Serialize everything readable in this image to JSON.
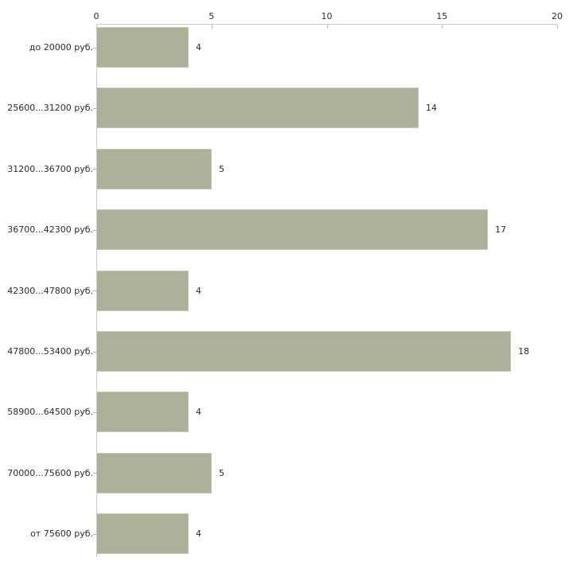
{
  "chart_data": {
    "type": "bar",
    "orientation": "horizontal",
    "title": "",
    "xlabel": "",
    "ylabel": "",
    "categories": [
      "до 20000 руб.",
      "25600...31200 руб.",
      "31200...36700 руб.",
      "36700...42300 руб.",
      "42300...47800 руб.",
      "47800...53400 руб.",
      "58900...64500 руб.",
      "70000...75600 руб.",
      "от 75600 руб."
    ],
    "values": [
      4,
      14,
      5,
      17,
      4,
      18,
      4,
      5,
      4
    ],
    "value_labels": [
      "4",
      "14",
      "5",
      "17",
      "4",
      "18",
      "4",
      "5",
      "4"
    ],
    "x_ticks": [
      0,
      5,
      10,
      15,
      20
    ],
    "x_tick_labels": [
      "0",
      "5",
      "10",
      "15",
      "20"
    ],
    "xlim": [
      0,
      20
    ],
    "grid": false,
    "legend": false,
    "axis_position": "top",
    "colors": {
      "bar_fill": "#ACB29A",
      "bar_border": "#C3C8B4",
      "axis_line": "#C9C9C9",
      "x_tick_mark": "#C6C89E",
      "category_tick_mark": "#B3B3A3",
      "text": "#2B2B2B",
      "background": "#FFFFFF"
    }
  }
}
